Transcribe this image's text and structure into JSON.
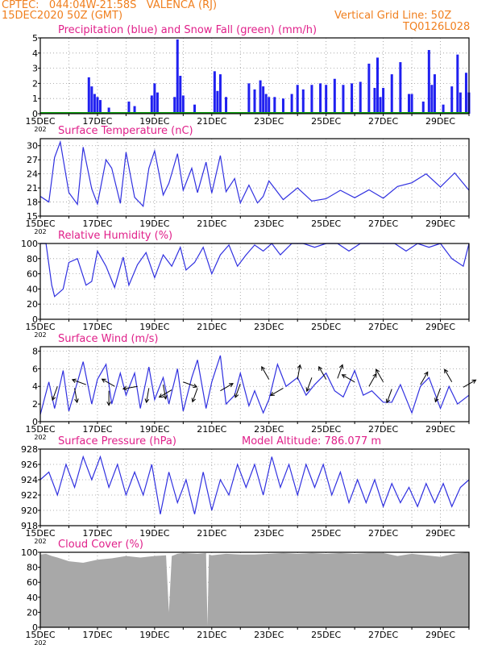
{
  "header": {
    "line1": "CPTEC:   044:04W-21:58S   VALENCA (RJ)",
    "line2": "15DEC2020 50Z (GMT)",
    "grid_note": "Vertical Grid Line: 50Z",
    "run_code": "TQ0126L028"
  },
  "colors": {
    "precip": "#2020f0",
    "snow": "#10a010",
    "line": "#3030e0",
    "cloud": "#a8a8a8",
    "title": "#e0208a",
    "header": "#f07f1e"
  },
  "x_ticks": [
    "15DEC",
    "17DEC",
    "19DEC",
    "21DEC",
    "23DEC",
    "25DEC",
    "27DEC",
    "29DEC"
  ],
  "x_tick_sub": "202",
  "chart_data": [
    {
      "id": "precip",
      "type": "bar",
      "title": "Precipitation (blue) and Snow Fall (green) (mm/h)",
      "ylim": [
        0,
        5
      ],
      "yticks": [
        "0",
        "1",
        "2",
        "3",
        "4",
        "5"
      ],
      "days_start": 15,
      "days_end": 30,
      "series": [
        {
          "name": "Precipitation",
          "x": [
            16.7,
            16.8,
            16.9,
            17.0,
            17.1,
            17.4,
            17.5,
            18.1,
            18.3,
            18.9,
            19.0,
            19.1,
            19.7,
            19.8,
            19.9,
            20.0,
            20.4,
            21.1,
            21.2,
            21.3,
            21.5,
            22.3,
            22.5,
            22.7,
            22.8,
            22.9,
            23.0,
            23.2,
            23.5,
            23.8,
            24.0,
            24.2,
            24.5,
            24.8,
            25.0,
            25.3,
            25.6,
            25.9,
            26.2,
            26.5,
            26.7,
            26.8,
            26.9,
            27.0,
            27.3,
            27.6,
            27.9,
            28.0,
            28.4,
            28.6,
            28.7,
            28.8,
            29.1,
            29.4,
            29.6,
            29.7,
            29.9,
            30.0
          ],
          "values": [
            2.4,
            1.8,
            1.3,
            1.1,
            0.9,
            0.4,
            0.1,
            0.8,
            0.5,
            1.2,
            2.0,
            1.4,
            1.1,
            4.9,
            2.5,
            1.2,
            0.6,
            2.8,
            1.5,
            2.6,
            1.1,
            2.0,
            1.6,
            2.2,
            1.8,
            1.3,
            1.1,
            1.1,
            1.0,
            1.3,
            1.9,
            1.6,
            1.9,
            2.0,
            1.9,
            2.3,
            1.9,
            2.0,
            2.1,
            3.3,
            1.7,
            3.7,
            1.1,
            1.7,
            2.6,
            3.4,
            1.3,
            1.3,
            0.8,
            4.2,
            1.9,
            2.6,
            0.6,
            1.8,
            3.9,
            1.4,
            2.7,
            1.4
          ]
        },
        {
          "name": "Snow Fall",
          "x": [
            15.0,
            30.0
          ],
          "values": [
            0,
            0
          ]
        }
      ]
    },
    {
      "id": "temp",
      "type": "line",
      "title": "Surface Temperature (nC)",
      "ylim": [
        15,
        31.5
      ],
      "yticks": [
        "15",
        "18",
        "21",
        "24",
        "27",
        "30"
      ],
      "series": [
        {
          "name": "Temperature",
          "x": [
            15.0,
            15.3,
            15.5,
            15.7,
            16.0,
            16.3,
            16.5,
            16.8,
            17.0,
            17.3,
            17.5,
            17.8,
            18.0,
            18.3,
            18.6,
            18.8,
            19.0,
            19.3,
            19.5,
            19.8,
            20.0,
            20.3,
            20.5,
            20.8,
            21.0,
            21.3,
            21.5,
            21.8,
            22.0,
            22.3,
            22.6,
            22.8,
            23.0,
            23.5,
            24.0,
            24.5,
            25.0,
            25.5,
            26.0,
            26.5,
            27.0,
            27.5,
            28.0,
            28.5,
            29.0,
            29.5,
            30.0
          ],
          "values": [
            19.2,
            18.0,
            27.5,
            30.8,
            20.0,
            17.5,
            29.7,
            20.8,
            17.6,
            27.0,
            25.2,
            17.7,
            28.6,
            19.0,
            17.1,
            25.2,
            28.9,
            19.5,
            22.0,
            28.3,
            20.5,
            25.2,
            20.0,
            26.5,
            19.9,
            27.9,
            20.2,
            23.0,
            17.8,
            21.6,
            17.8,
            19.2,
            22.5,
            18.5,
            21.0,
            18.2,
            18.7,
            20.5,
            18.9,
            20.6,
            18.8,
            21.3,
            22.1,
            24.0,
            21.2,
            24.2,
            20.5
          ]
        }
      ]
    },
    {
      "id": "rh",
      "type": "line",
      "title": "Relative Humidity (%)",
      "ylim": [
        0,
        100
      ],
      "yticks": [
        "0",
        "20",
        "40",
        "60",
        "80",
        "100"
      ],
      "series": [
        {
          "name": "Relative Humidity",
          "x": [
            15.0,
            15.2,
            15.4,
            15.5,
            15.8,
            16.0,
            16.3,
            16.6,
            16.8,
            17.0,
            17.3,
            17.6,
            17.9,
            18.1,
            18.4,
            18.7,
            19.0,
            19.3,
            19.6,
            19.9,
            20.1,
            20.4,
            20.7,
            21.0,
            21.3,
            21.6,
            21.9,
            22.2,
            22.5,
            22.8,
            23.1,
            23.4,
            23.8,
            24.2,
            24.6,
            25.0,
            25.4,
            25.8,
            26.2,
            26.6,
            27.0,
            27.4,
            27.8,
            28.2,
            28.6,
            29.0,
            29.4,
            29.8,
            30.0
          ],
          "values": [
            100,
            100,
            45,
            30,
            40,
            75,
            80,
            45,
            50,
            90,
            70,
            42,
            82,
            45,
            72,
            88,
            55,
            85,
            70,
            95,
            65,
            75,
            95,
            60,
            85,
            98,
            70,
            85,
            98,
            90,
            100,
            85,
            100,
            100,
            95,
            100,
            100,
            90,
            100,
            100,
            100,
            100,
            90,
            100,
            95,
            100,
            80,
            70,
            100
          ]
        }
      ]
    },
    {
      "id": "wind",
      "type": "line",
      "title": "Surface Wind (m/s)",
      "ylim": [
        0,
        8.5
      ],
      "yticks": [
        "0",
        "2",
        "4",
        "6",
        "8"
      ],
      "series": [
        {
          "name": "Wind Speed",
          "x": [
            15.0,
            15.3,
            15.5,
            15.8,
            16.0,
            16.3,
            16.5,
            16.8,
            17.0,
            17.3,
            17.5,
            17.8,
            18.0,
            18.3,
            18.5,
            18.8,
            19.0,
            19.3,
            19.5,
            19.8,
            20.0,
            20.3,
            20.5,
            20.8,
            21.0,
            21.3,
            21.5,
            21.8,
            22.0,
            22.3,
            22.5,
            22.8,
            23.0,
            23.3,
            23.6,
            24.0,
            24.3,
            24.6,
            25.0,
            25.3,
            25.6,
            26.0,
            26.3,
            26.6,
            27.0,
            27.3,
            27.6,
            28.0,
            28.3,
            28.6,
            29.0,
            29.3,
            29.6,
            30.0
          ],
          "values": [
            0.8,
            4.5,
            1.5,
            5.8,
            1.2,
            4.5,
            6.8,
            2.0,
            4.8,
            6.5,
            2.0,
            5.5,
            3.0,
            5.5,
            1.5,
            6.2,
            2.5,
            5.0,
            2.0,
            6.0,
            1.2,
            5.0,
            7.0,
            1.5,
            4.5,
            7.5,
            2.0,
            3.0,
            5.5,
            1.8,
            3.5,
            1.0,
            2.5,
            6.5,
            4.0,
            5.0,
            3.0,
            4.2,
            5.5,
            3.5,
            2.8,
            5.8,
            3.0,
            3.5,
            2.2,
            2.2,
            4.2,
            1.0,
            4.0,
            5.0,
            1.5,
            4.0,
            2.0,
            3.0
          ]
        }
      ],
      "arrows": [
        {
          "x": 15.6,
          "y": 4.0,
          "dir": 200
        },
        {
          "x": 16.6,
          "y": 4.2,
          "dir": 290
        },
        {
          "x": 16.2,
          "y": 3.8,
          "dir": 170
        },
        {
          "x": 17.6,
          "y": 4.0,
          "dir": 300
        },
        {
          "x": 17.4,
          "y": 3.5,
          "dir": 180
        },
        {
          "x": 18.4,
          "y": 4.0,
          "dir": 260
        },
        {
          "x": 18.8,
          "y": 3.8,
          "dir": 190
        },
        {
          "x": 19.3,
          "y": 4.2,
          "dir": 170
        },
        {
          "x": 19.6,
          "y": 3.6,
          "dir": 240
        },
        {
          "x": 20.0,
          "y": 4.5,
          "dir": 110
        },
        {
          "x": 20.5,
          "y": 3.8,
          "dir": 200
        },
        {
          "x": 21.3,
          "y": 3.5,
          "dir": 60
        },
        {
          "x": 22.0,
          "y": 4.3,
          "dir": 200
        },
        {
          "x": 23.0,
          "y": 4.8,
          "dir": 330
        },
        {
          "x": 23.5,
          "y": 3.8,
          "dir": 240
        },
        {
          "x": 24.0,
          "y": 4.8,
          "dir": 10
        },
        {
          "x": 24.5,
          "y": 5.0,
          "dir": 200
        },
        {
          "x": 25.0,
          "y": 4.8,
          "dir": 330
        },
        {
          "x": 25.4,
          "y": 4.9,
          "dir": 20
        },
        {
          "x": 26.0,
          "y": 4.5,
          "dir": 300
        },
        {
          "x": 26.5,
          "y": 4.0,
          "dir": 30
        },
        {
          "x": 27.0,
          "y": 4.5,
          "dir": 330
        },
        {
          "x": 27.3,
          "y": 3.7,
          "dir": 200
        },
        {
          "x": 28.3,
          "y": 4.2,
          "dir": 30
        },
        {
          "x": 29.0,
          "y": 3.8,
          "dir": 200
        },
        {
          "x": 29.4,
          "y": 4.5,
          "dir": 330
        },
        {
          "x": 29.8,
          "y": 3.9,
          "dir": 60
        }
      ]
    },
    {
      "id": "pressure",
      "type": "line",
      "title": "Surface Pressure (hPa)",
      "annotation": "Model Altitude: 786.077 m",
      "ylim": [
        918,
        928
      ],
      "yticks": [
        "918",
        "920",
        "922",
        "924",
        "926",
        "928"
      ],
      "series": [
        {
          "name": "Pressure",
          "x": [
            15.0,
            15.3,
            15.6,
            15.9,
            16.2,
            16.5,
            16.8,
            17.1,
            17.4,
            17.7,
            18.0,
            18.3,
            18.6,
            18.9,
            19.2,
            19.5,
            19.8,
            20.1,
            20.4,
            20.7,
            21.0,
            21.3,
            21.6,
            21.9,
            22.2,
            22.5,
            22.8,
            23.1,
            23.4,
            23.7,
            24.0,
            24.3,
            24.6,
            24.9,
            25.2,
            25.5,
            25.8,
            26.1,
            26.4,
            26.7,
            27.0,
            27.3,
            27.6,
            27.9,
            28.2,
            28.5,
            28.8,
            29.1,
            29.4,
            29.7,
            30.0
          ],
          "values": [
            924,
            925,
            922,
            926,
            923,
            927,
            924,
            927,
            923,
            926,
            922,
            925,
            922,
            926,
            919.5,
            925,
            921,
            924,
            919.5,
            925,
            920,
            924,
            922,
            926,
            923,
            926,
            922,
            927,
            923,
            926,
            922,
            926,
            923,
            926,
            922,
            925,
            921,
            924,
            921,
            924,
            920.5,
            923.5,
            921,
            923,
            920.5,
            923.5,
            921,
            923.5,
            920.5,
            923,
            924
          ]
        }
      ]
    },
    {
      "id": "cloud",
      "type": "area",
      "title": "Cloud Cover (%)",
      "ylim": [
        0,
        100
      ],
      "yticks": [
        "0",
        "20",
        "40",
        "60",
        "80",
        "100"
      ],
      "series": [
        {
          "name": "Cloud Cover",
          "x": [
            15.0,
            15.2,
            15.4,
            15.6,
            16.0,
            16.5,
            17.0,
            17.5,
            18.0,
            18.5,
            19.0,
            19.4,
            19.5,
            19.6,
            19.8,
            20.0,
            20.5,
            20.8,
            20.85,
            20.9,
            21.0,
            21.5,
            22.0,
            22.5,
            23.0,
            23.5,
            24.0,
            24.5,
            25.0,
            25.5,
            26.0,
            26.5,
            27.0,
            27.5,
            28.0,
            28.5,
            29.0,
            29.5,
            30.0
          ],
          "values": [
            97,
            98,
            95,
            93,
            88,
            86,
            90,
            92,
            95,
            93,
            95,
            96,
            20,
            95,
            98,
            99,
            98,
            99,
            2,
            97,
            96,
            98,
            97,
            97,
            98,
            99,
            98,
            99,
            98,
            99,
            98,
            99,
            99,
            95,
            98,
            96,
            94,
            98,
            100
          ]
        }
      ]
    }
  ]
}
